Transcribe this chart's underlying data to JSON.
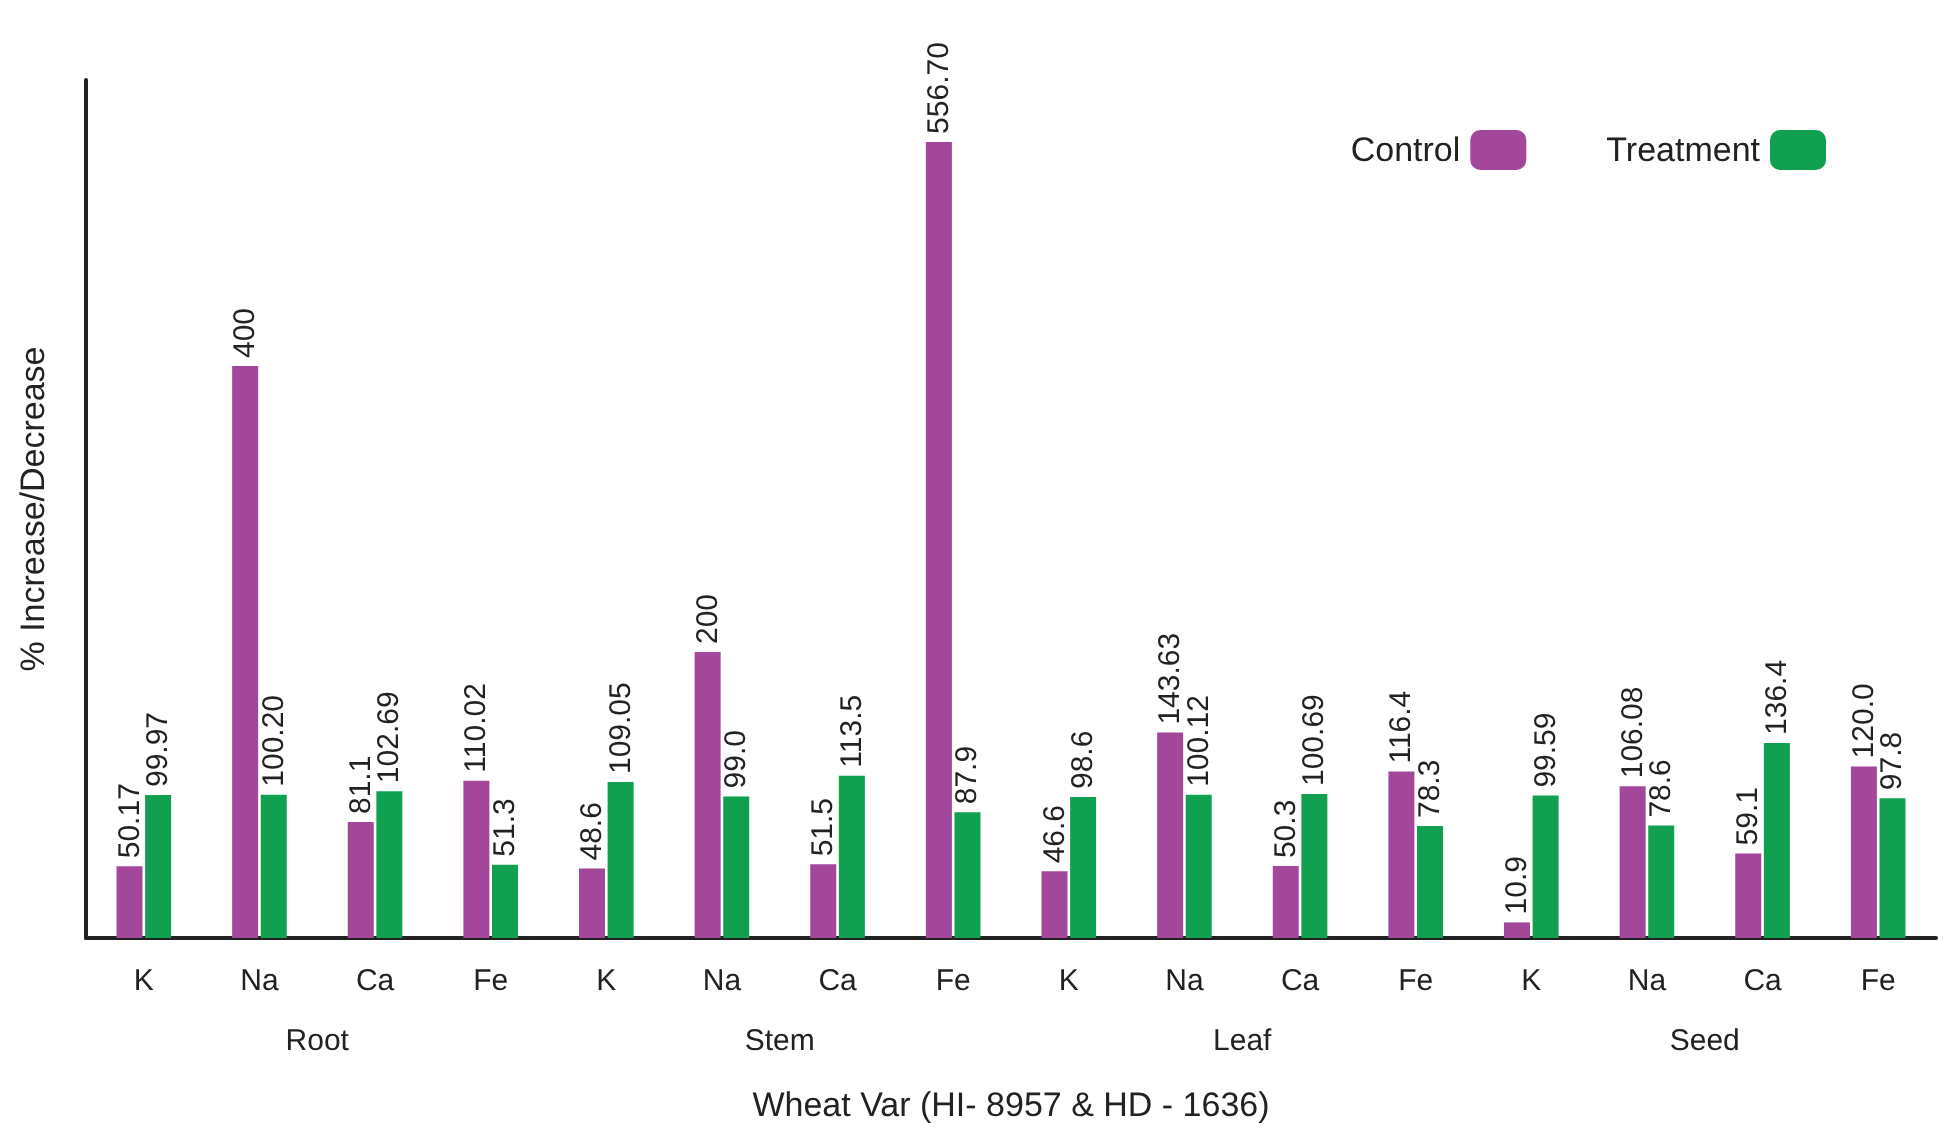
{
  "chart_data": {
    "type": "bar",
    "xlabel": "Wheat Var (HI- 8957 & HD - 1636)",
    "ylabel": "% Increase/Decrease",
    "categories": [
      "K",
      "Na",
      "Ca",
      "Fe",
      "K",
      "Na",
      "Ca",
      "Fe",
      "K",
      "Na",
      "Ca",
      "Fe",
      "K",
      "Na",
      "Ca",
      "Fe"
    ],
    "annotations": [
      "Root",
      "Stem",
      "Leaf",
      "Seed"
    ],
    "series": [
      {
        "name": "Control",
        "color": "#a3479b",
        "values": [
          50.17,
          400,
          81.1,
          110.02,
          48.6,
          200,
          51.5,
          556.7,
          46.6,
          143.63,
          50.3,
          116.4,
          10.9,
          106.08,
          59.1,
          120.0
        ],
        "value_labels": [
          "50.17",
          "400",
          "81.1",
          "110.02",
          "48.6",
          "200",
          "51.5",
          "556.70",
          "46.6",
          "143.63",
          "50.3",
          "116.4",
          "10.9",
          "106.08",
          "59.1",
          "120.0"
        ]
      },
      {
        "name": "Treatment",
        "color": "#10a050",
        "values": [
          99.97,
          100.2,
          102.69,
          51.3,
          109.05,
          99.0,
          113.5,
          87.9,
          98.6,
          100.12,
          100.69,
          78.3,
          99.59,
          78.6,
          136.4,
          97.8
        ],
        "value_labels": [
          "99.97",
          "100.20",
          "102.69",
          "51.3",
          "109.05",
          "99.0",
          "113.5",
          "87.9",
          "98.6",
          "100.12",
          "100.69",
          "78.3",
          "99.59",
          "78.6",
          "136.4",
          "97.8"
        ]
      }
    ],
    "ylim": [
      0,
      600
    ],
    "tick_labels": "x",
    "legend": "top right"
  }
}
